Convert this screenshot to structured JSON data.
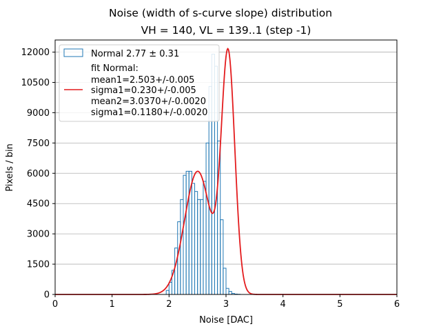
{
  "chart_data": {
    "type": "histogram",
    "title": "Noise (width of s-curve slope) distribution",
    "subtitle": "VH = 140, VL = 139..1 (step -1)",
    "xlabel": "Noise [DAC]",
    "ylabel": "Pixels / bin",
    "xlim": [
      0,
      6
    ],
    "ylim": [
      0,
      12600
    ],
    "xticks": [
      0,
      1,
      2,
      3,
      4,
      5,
      6
    ],
    "yticks": [
      0,
      1500,
      3000,
      4500,
      6000,
      7500,
      9000,
      10500,
      12000
    ],
    "grid": "y-major",
    "legend_position": "top-left",
    "histogram": {
      "name": "Normal 2.77 ± 0.31",
      "color": "#1f77b4",
      "bin_edges": [
        1.95,
        2.0,
        2.05,
        2.1,
        2.15,
        2.2,
        2.25,
        2.3,
        2.35,
        2.4,
        2.45,
        2.5,
        2.55,
        2.6,
        2.65,
        2.7,
        2.75,
        2.8,
        2.85,
        2.9,
        2.95,
        3.0,
        3.05,
        3.1,
        3.15,
        3.2,
        3.25,
        3.3,
        3.35,
        3.4,
        3.45,
        3.5
      ],
      "counts": [
        200,
        600,
        1200,
        2300,
        3600,
        4700,
        5900,
        6100,
        6100,
        5500,
        5100,
        4700,
        4700,
        5600,
        7500,
        10300,
        11900,
        11300,
        7600,
        3700,
        1300,
        300,
        150,
        50,
        20,
        10,
        0,
        0,
        0,
        0,
        0
      ]
    },
    "fit": {
      "label": "fit Normal:",
      "params": [
        "mean1=2.503+/-0.005",
        "sigma1=0.230+/-0.005",
        "mean2=3.0370+/-0.0020",
        "sigma1=0.1180+/-0.0020"
      ],
      "color": "#e31a1c",
      "components": [
        {
          "amplitude": 6100,
          "mean": 2.503,
          "sigma": 0.23
        },
        {
          "amplitude": 11750,
          "mean": 3.037,
          "sigma": 0.118
        }
      ]
    }
  }
}
